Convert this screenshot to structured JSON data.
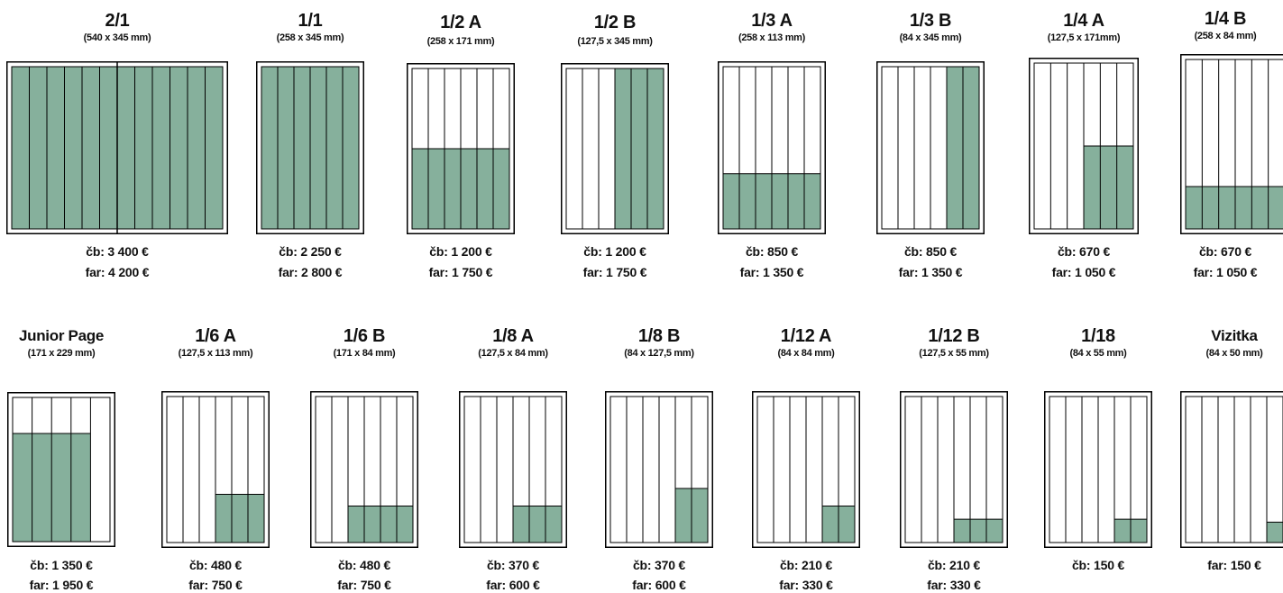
{
  "colors": {
    "fill": "#86b09c",
    "line": "#000000",
    "background": "#ffffff"
  },
  "ads": [
    {
      "id": "2-1",
      "title": "2/1",
      "dims": "(540 x 345 mm)",
      "price_cb": "čb: 3 400 €",
      "price_far": "far: 4 200 €"
    },
    {
      "id": "1-1",
      "title": "1/1",
      "dims": "(258 x 345 mm)",
      "price_cb": "čb: 2 250 €",
      "price_far": "far: 2 800 €"
    },
    {
      "id": "1-2a",
      "title": "1/2 A",
      "dims": "(258 x 171 mm)",
      "price_cb": "čb: 1 200 €",
      "price_far": "far: 1 750 €"
    },
    {
      "id": "1-2b",
      "title": "1/2 B",
      "dims": "(127,5 x 345 mm)",
      "price_cb": "čb: 1 200 €",
      "price_far": "far: 1 750 €"
    },
    {
      "id": "1-3a",
      "title": "1/3 A",
      "dims": "(258 x 113 mm)",
      "price_cb": "čb: 850 €",
      "price_far": "far: 1 350 €"
    },
    {
      "id": "1-3b",
      "title": "1/3 B",
      "dims": "(84 x 345 mm)",
      "price_cb": "čb: 850 €",
      "price_far": "far: 1 350 €"
    },
    {
      "id": "1-4a",
      "title": "1/4 A",
      "dims": "(127,5 x 171mm)",
      "price_cb": "čb: 670 €",
      "price_far": "far: 1 050 €"
    },
    {
      "id": "1-4b",
      "title": "1/4 B",
      "dims": "(258 x 84 mm)",
      "price_cb": "čb: 670 €",
      "price_far": "far: 1 050 €"
    },
    {
      "id": "junior",
      "title": "Junior Page",
      "dims": "(171 x 229 mm)",
      "price_cb": "čb: 1 350 €",
      "price_far": "far: 1 950 €"
    },
    {
      "id": "1-6a",
      "title": "1/6 A",
      "dims": "(127,5 x 113 mm)",
      "price_cb": "čb: 480 €",
      "price_far": "far: 750 €"
    },
    {
      "id": "1-6b",
      "title": "1/6 B",
      "dims": "(171 x 84 mm)",
      "price_cb": "čb: 480 €",
      "price_far": "far: 750 €"
    },
    {
      "id": "1-8a",
      "title": "1/8 A",
      "dims": "(127,5 x 84 mm)",
      "price_cb": "čb: 370 €",
      "price_far": "far: 600 €"
    },
    {
      "id": "1-8b",
      "title": "1/8 B",
      "dims": "(84 x 127,5 mm)",
      "price_cb": "čb: 370 €",
      "price_far": "far: 600 €"
    },
    {
      "id": "1-12a",
      "title": "1/12 A",
      "dims": "(84 x 84 mm)",
      "price_cb": "čb: 210 €",
      "price_far": "far: 330 €"
    },
    {
      "id": "1-12b",
      "title": "1/12 B",
      "dims": "(127,5 x 55 mm)",
      "price_cb": "čb: 210 €",
      "price_far": "far: 330 €"
    },
    {
      "id": "1-18",
      "title": "1/18",
      "dims": "(84 x 55 mm)",
      "price_cb": "čb: 150 €",
      "price_far": ""
    },
    {
      "id": "vizitka",
      "title": "Vizitka",
      "dims": "(84 x 50 mm)",
      "price_cb": "",
      "price_far": "far: 150 €"
    }
  ]
}
